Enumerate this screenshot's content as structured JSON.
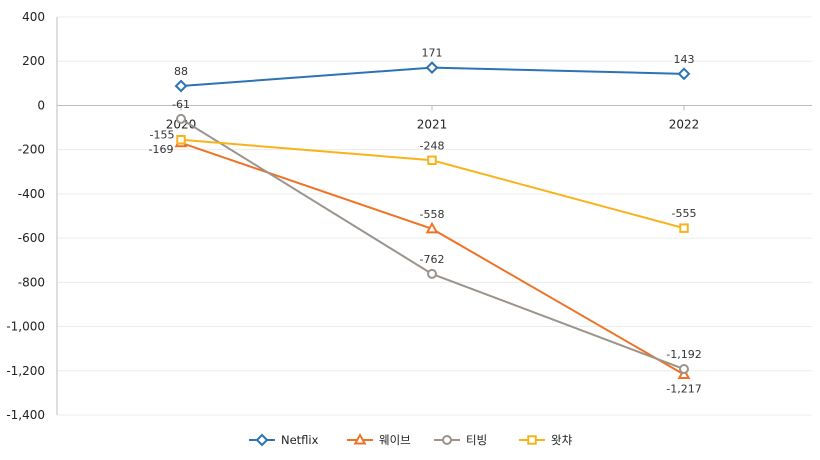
{
  "chart_data": {
    "type": "line",
    "x": [
      "2020",
      "2021",
      "2022"
    ],
    "ylim": [
      -1400,
      400
    ],
    "yticks": [
      400,
      200,
      0,
      -200,
      -400,
      -600,
      -800,
      -1000,
      -1200,
      -1400
    ],
    "ytick_labels": [
      "400",
      "200",
      "0",
      "-200",
      "-400",
      "-600",
      "-800",
      "-1,000",
      "-1,200",
      "-1,400"
    ],
    "legend_position": "bottom",
    "grid": "horizontal",
    "series": [
      {
        "name": "Netflix",
        "color": "#2b73b6",
        "marker": "diamond",
        "values": [
          88,
          171,
          143
        ],
        "labels": [
          "88",
          "171",
          "143"
        ]
      },
      {
        "name": "웨이브",
        "color": "#ee7326",
        "marker": "triangle",
        "values": [
          -169,
          -558,
          -1217
        ],
        "labels": [
          "-169",
          "-558",
          "-1,217"
        ]
      },
      {
        "name": "티빙",
        "color": "#9b938c",
        "marker": "circle",
        "values": [
          -61,
          -762,
          -1192
        ],
        "labels": [
          "-61",
          "-762",
          "-1,192"
        ]
      },
      {
        "name": "왓챠",
        "color": "#f8b31b",
        "marker": "square",
        "values": [
          -155,
          -248,
          -555
        ],
        "labels": [
          "-155",
          "-248",
          "-555"
        ]
      }
    ]
  }
}
